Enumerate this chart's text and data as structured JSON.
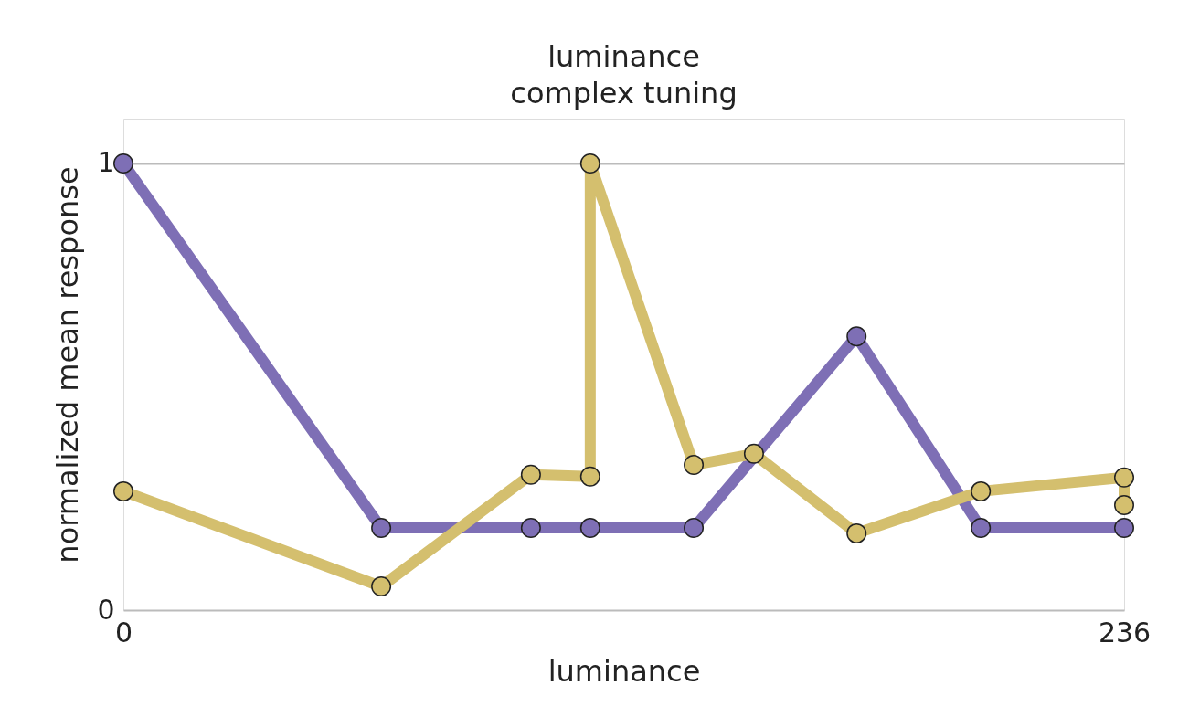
{
  "chart_data": {
    "type": "line",
    "title": "luminance",
    "subtitle": "complex tuning",
    "xlabel": "luminance",
    "ylabel": "normalized mean response",
    "xlim": [
      0,
      236
    ],
    "xticks": [
      0,
      236
    ],
    "ylim": [
      0,
      1.1
    ],
    "yticks": [
      0,
      1
    ],
    "grid": "y",
    "marker": "circle",
    "line_style": "solid",
    "series": [
      {
        "color": "#7e6fb5",
        "x": [
          0,
          60.8,
          96.1,
          110.1,
          134.5,
          172.9,
          202.2,
          236
        ],
        "values": [
          1,
          0.184,
          0.184,
          0.184,
          0.184,
          0.613,
          0.184,
          0.184
        ]
      },
      {
        "color": "#d4bf6e",
        "x": [
          0,
          60.8,
          96.1,
          110.1,
          110.1,
          134.5,
          148.7,
          172.9,
          202.2,
          236,
          236
        ],
        "values": [
          0.266,
          0.053,
          0.303,
          0.299,
          1,
          0.325,
          0.35,
          0.172,
          0.266,
          0.297,
          0.235
        ]
      }
    ]
  }
}
